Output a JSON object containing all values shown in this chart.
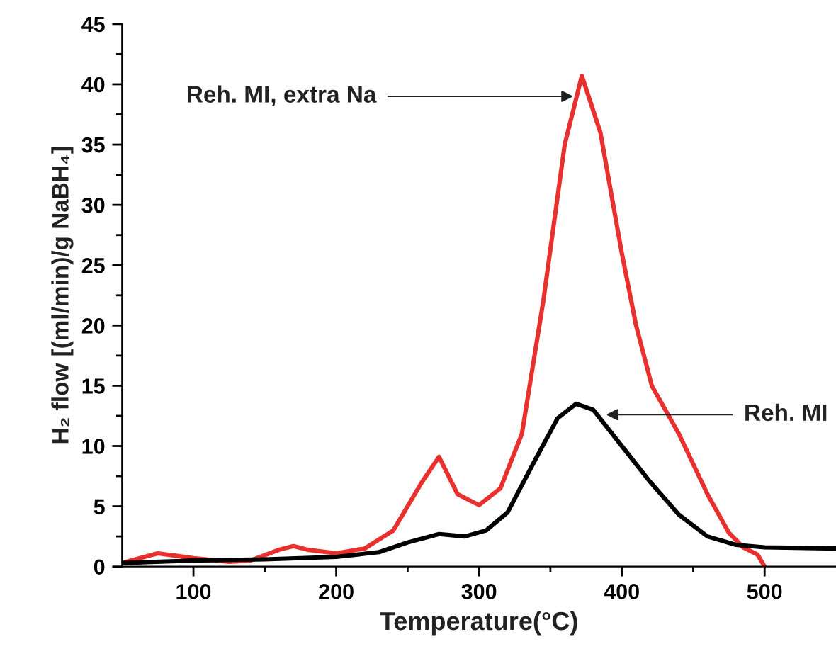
{
  "chart_data": {
    "type": "line",
    "xlabel": "Temperature(°C)",
    "ylabel": "H₂ flow [(ml/min)/g NaBH₄]",
    "xlim": [
      50,
      550
    ],
    "ylim": [
      0,
      45
    ],
    "xticks": [
      100,
      {
        "value": 150,
        "label": null
      },
      200,
      {
        "value": 250,
        "label": null
      },
      300,
      {
        "value": 350,
        "label": null
      },
      400,
      {
        "value": 450,
        "label": null
      },
      500
    ],
    "yticks": [
      0,
      {
        "value": 2.5,
        "label": null
      },
      5,
      {
        "value": 7.5,
        "label": null
      },
      10,
      {
        "value": 12.5,
        "label": null
      },
      15,
      {
        "value": 17.5,
        "label": null
      },
      20,
      {
        "value": 22.5,
        "label": null
      },
      25,
      {
        "value": 27.5,
        "label": null
      },
      30,
      {
        "value": 32.5,
        "label": null
      },
      35,
      {
        "value": 37.5,
        "label": null
      },
      40,
      {
        "value": 42.5,
        "label": null
      },
      45
    ],
    "grid": false,
    "legend": false,
    "marker": "none",
    "line_style": "solid",
    "series": [
      {
        "color": "#e8312f",
        "x": [
          50,
          75,
          100,
          125,
          140,
          160,
          170,
          180,
          200,
          220,
          240,
          260,
          272,
          285,
          300,
          315,
          330,
          345,
          360,
          372,
          385,
          400,
          410,
          421,
          440,
          460,
          475,
          485,
          495,
          500
        ],
        "values": [
          0.3,
          1.1,
          0.7,
          0.4,
          0.5,
          1.4,
          1.7,
          1.4,
          1.1,
          1.5,
          3.0,
          7.0,
          9.1,
          6.0,
          5.1,
          6.5,
          11,
          22,
          35,
          40.7,
          36,
          26,
          20,
          15,
          11,
          6,
          2.8,
          1.6,
          1.0,
          0
        ]
      },
      {
        "color": "#000000",
        "x": [
          50,
          100,
          150,
          200,
          230,
          250,
          272,
          290,
          305,
          320,
          340,
          355,
          368,
          380,
          400,
          420,
          440,
          460,
          480,
          500,
          550
        ],
        "values": [
          0.3,
          0.5,
          0.6,
          0.8,
          1.2,
          2.0,
          2.7,
          2.5,
          3.0,
          4.5,
          9,
          12.3,
          13.5,
          13.0,
          10.0,
          7.0,
          4.3,
          2.5,
          1.8,
          1.6,
          1.5
        ]
      }
    ],
    "annotations": [
      {
        "text": "Reh. MI, extra Na",
        "x": 366,
        "y": 39
      },
      {
        "text": "Reh. MI",
        "x": 389,
        "y": 12.6
      }
    ]
  }
}
